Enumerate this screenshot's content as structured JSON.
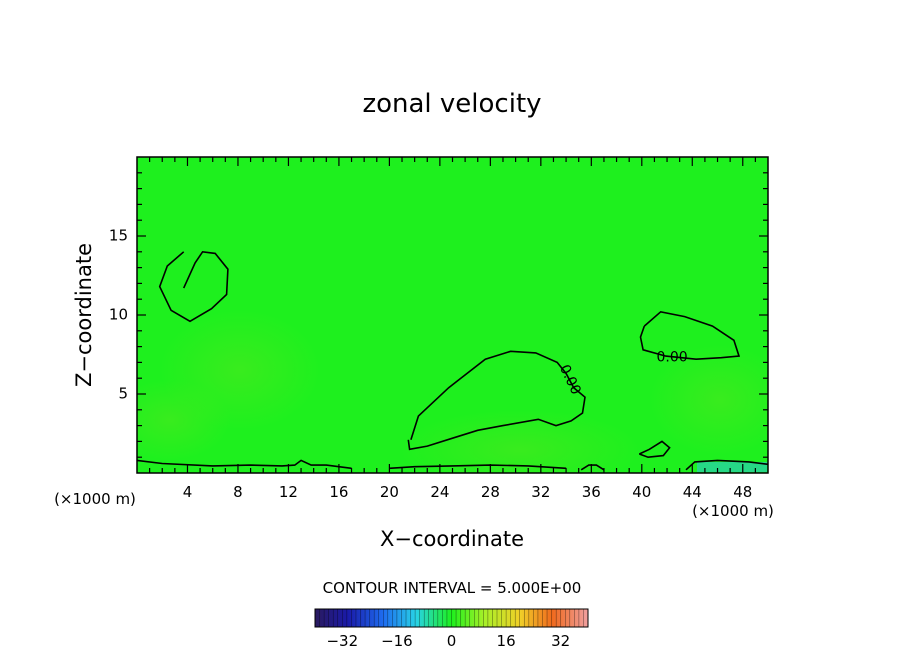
{
  "chart_data": {
    "type": "heatmap",
    "title": "zonal velocity",
    "xlabel": "X−coordinate",
    "ylabel": "Z−coordinate",
    "x_unit_left": "(×1000 m)",
    "x_unit_right": "(×1000 m)",
    "xlim": [
      0,
      50
    ],
    "ylim": [
      0,
      20
    ],
    "x_ticks": [
      4,
      8,
      12,
      16,
      20,
      24,
      28,
      32,
      36,
      40,
      44,
      48
    ],
    "y_ticks": [
      5,
      10,
      15
    ],
    "field_background_color": "#1ef01e",
    "contour_interval_text": "CONTOUR INTERVAL = 5.000E+00",
    "contour_labels": [
      {
        "text": "0.00",
        "x": 42.4,
        "y": 7.3
      },
      {
        "text": "0.00",
        "x": 34.3,
        "y": 5.9
      }
    ],
    "colorbar": {
      "min": -40,
      "max": 40,
      "ticks": [
        -32,
        -16,
        0,
        16,
        32
      ],
      "tick_labels": [
        "−32",
        "−16",
        "0",
        "16",
        "32"
      ]
    },
    "contours": [
      {
        "name": "contour-zero-upper-left",
        "points": [
          [
            3.7,
            11.7
          ],
          [
            4.6,
            13.3
          ],
          [
            5.2,
            14.0
          ],
          [
            6.2,
            13.9
          ],
          [
            7.2,
            12.9
          ],
          [
            7.1,
            11.3
          ],
          [
            5.9,
            10.4
          ],
          [
            4.2,
            9.6
          ],
          [
            2.7,
            10.3
          ],
          [
            1.8,
            11.8
          ],
          [
            2.4,
            13.1
          ],
          [
            3.7,
            14.0
          ]
        ]
      },
      {
        "name": "contour-zero-center",
        "points": [
          [
            21.7,
            2.1
          ],
          [
            22.3,
            3.6
          ],
          [
            24.7,
            5.4
          ],
          [
            27.6,
            7.2
          ],
          [
            29.6,
            7.7
          ],
          [
            31.6,
            7.6
          ],
          [
            33.3,
            7.0
          ],
          [
            34.0,
            6.3
          ],
          [
            34.6,
            5.4
          ],
          [
            35.5,
            4.8
          ],
          [
            35.3,
            3.8
          ],
          [
            34.4,
            3.3
          ],
          [
            33.2,
            3.0
          ],
          [
            31.8,
            3.4
          ],
          [
            29.0,
            3.0
          ],
          [
            27.0,
            2.7
          ],
          [
            25.0,
            2.2
          ],
          [
            23.0,
            1.7
          ],
          [
            21.6,
            1.5
          ],
          [
            21.5,
            2.1
          ]
        ]
      },
      {
        "name": "contour-zero-right",
        "points": [
          [
            40.2,
            9.3
          ],
          [
            41.5,
            10.2
          ],
          [
            43.4,
            9.9
          ],
          [
            45.6,
            9.3
          ],
          [
            47.3,
            8.4
          ],
          [
            47.7,
            7.4
          ],
          [
            46.3,
            7.3
          ],
          [
            44.3,
            7.2
          ],
          [
            41.9,
            7.4
          ],
          [
            40.1,
            7.8
          ],
          [
            39.9,
            8.6
          ],
          [
            40.2,
            9.3
          ]
        ]
      },
      {
        "name": "contour-near-surface",
        "points": [
          [
            0.0,
            0.8
          ],
          [
            2.0,
            0.6
          ],
          [
            6.0,
            0.45
          ],
          [
            9.0,
            0.5
          ],
          [
            11.5,
            0.45
          ],
          [
            12.5,
            0.5
          ],
          [
            13.0,
            0.8
          ],
          [
            13.8,
            0.5
          ],
          [
            15.0,
            0.5
          ],
          [
            17.0,
            0.3
          ]
        ]
      },
      {
        "name": "contour-bottom-right",
        "points": [
          [
            43.5,
            0.2
          ],
          [
            44.2,
            0.7
          ],
          [
            46.0,
            0.8
          ],
          [
            48.5,
            0.7
          ],
          [
            50.0,
            0.55
          ]
        ]
      },
      {
        "name": "contour-small-right",
        "points": [
          [
            39.8,
            1.2
          ],
          [
            40.6,
            1.5
          ],
          [
            41.6,
            2.0
          ],
          [
            42.2,
            1.6
          ],
          [
            41.7,
            1.1
          ],
          [
            40.5,
            1.0
          ],
          [
            39.8,
            1.2
          ]
        ]
      },
      {
        "name": "contour-bottom-mid",
        "points": [
          [
            20.0,
            0.3
          ],
          [
            22.0,
            0.4
          ],
          [
            25.0,
            0.45
          ],
          [
            28.0,
            0.5
          ],
          [
            31.0,
            0.45
          ],
          [
            34.0,
            0.3
          ]
        ]
      },
      {
        "name": "contour-bottom-36",
        "points": [
          [
            35.2,
            0.2
          ],
          [
            35.8,
            0.5
          ],
          [
            36.4,
            0.5
          ],
          [
            37.0,
            0.2
          ]
        ]
      }
    ]
  }
}
